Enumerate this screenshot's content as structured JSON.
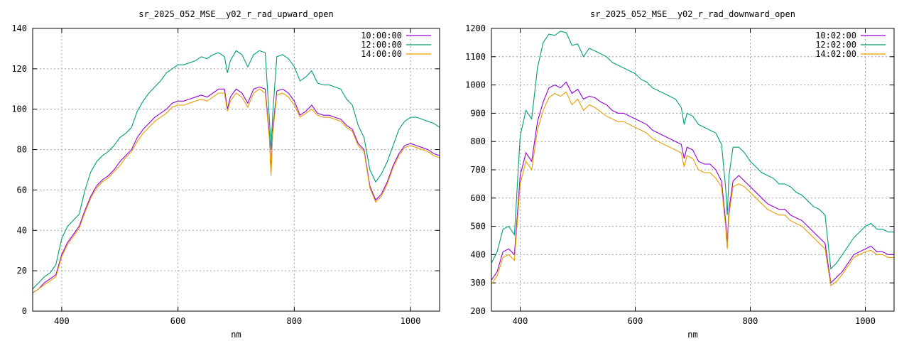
{
  "chart_data": [
    {
      "type": "line",
      "title": "sr_2025_052_MSE__y02_r_rad_upward_open",
      "xlabel": "nm",
      "ylabel": "",
      "xlim": [
        350,
        1050
      ],
      "ylim": [
        0,
        140
      ],
      "xticks": [
        400,
        600,
        800,
        1000
      ],
      "yticks": [
        0,
        20,
        40,
        60,
        80,
        100,
        120,
        140
      ],
      "grid": true,
      "legend_position": "top-right",
      "x": [
        350,
        360,
        370,
        380,
        390,
        400,
        410,
        420,
        430,
        440,
        450,
        460,
        470,
        480,
        490,
        500,
        510,
        520,
        530,
        540,
        550,
        560,
        570,
        580,
        590,
        600,
        610,
        620,
        630,
        640,
        650,
        660,
        670,
        680,
        685,
        690,
        700,
        710,
        720,
        730,
        740,
        750,
        757,
        760,
        763,
        770,
        780,
        790,
        800,
        810,
        820,
        830,
        840,
        850,
        860,
        870,
        880,
        890,
        900,
        910,
        920,
        930,
        940,
        950,
        960,
        970,
        980,
        990,
        1000,
        1010,
        1020,
        1030,
        1040,
        1050
      ],
      "series": [
        {
          "name": "10:00:00",
          "color": "#9400d3",
          "values": [
            9,
            11,
            14,
            16,
            18,
            28,
            34,
            38,
            42,
            50,
            57,
            62,
            65,
            67,
            70,
            74,
            77,
            80,
            86,
            90,
            93,
            96,
            98,
            100,
            103,
            104,
            104,
            105,
            106,
            107,
            106,
            108,
            110,
            110,
            100,
            106,
            110,
            108,
            103,
            110,
            111,
            110,
            88,
            69,
            90,
            109,
            110,
            108,
            104,
            97,
            99,
            102,
            98,
            97,
            97,
            96,
            95,
            92,
            90,
            83,
            80,
            62,
            55,
            58,
            64,
            72,
            78,
            82,
            83,
            82,
            81,
            80,
            78,
            77
          ],
          "labels": {
            "name": "10:00:00"
          }
        },
        {
          "name": "12:00:00",
          "color": "#009e73",
          "values": [
            11,
            14,
            17,
            19,
            23,
            36,
            42,
            45,
            48,
            60,
            69,
            74,
            77,
            79,
            82,
            86,
            88,
            91,
            99,
            104,
            108,
            111,
            114,
            118,
            120,
            122,
            122,
            123,
            124,
            126,
            125,
            127,
            128,
            126,
            118,
            124,
            129,
            127,
            121,
            127,
            129,
            128,
            96,
            80,
            98,
            126,
            127,
            125,
            121,
            114,
            116,
            119,
            113,
            112,
            112,
            111,
            110,
            105,
            102,
            92,
            86,
            70,
            64,
            68,
            74,
            82,
            90,
            94,
            96,
            96,
            95,
            94,
            93,
            91
          ],
          "labels": {
            "name": "12:00:00"
          }
        },
        {
          "name": "14:00:00",
          "color": "#e69f00",
          "values": [
            9,
            11,
            13,
            15,
            17,
            27,
            33,
            37,
            41,
            49,
            56,
            61,
            64,
            66,
            69,
            72,
            76,
            79,
            84,
            88,
            91,
            94,
            96,
            98,
            101,
            102,
            102,
            103,
            104,
            105,
            104,
            106,
            108,
            108,
            99,
            104,
            108,
            106,
            101,
            108,
            110,
            108,
            86,
            67,
            88,
            107,
            108,
            106,
            102,
            96,
            98,
            100,
            97,
            96,
            96,
            95,
            94,
            91,
            89,
            82,
            79,
            61,
            54,
            57,
            63,
            71,
            77,
            81,
            82,
            81,
            80,
            79,
            77,
            76
          ],
          "labels": {
            "name": "14:00:00"
          }
        }
      ]
    },
    {
      "type": "line",
      "title": "sr_2025_052_MSE__y02_r_rad_downward_open",
      "xlabel": "nm",
      "ylabel": "",
      "xlim": [
        350,
        1050
      ],
      "ylim": [
        200,
        1200
      ],
      "xticks": [
        400,
        600,
        800,
        1000
      ],
      "yticks": [
        200,
        300,
        400,
        500,
        600,
        700,
        800,
        900,
        1000,
        1100,
        1200
      ],
      "grid": true,
      "legend_position": "top-right",
      "x": [
        350,
        360,
        370,
        380,
        390,
        400,
        410,
        420,
        430,
        440,
        450,
        460,
        470,
        480,
        490,
        500,
        510,
        520,
        530,
        540,
        550,
        560,
        570,
        580,
        590,
        600,
        610,
        620,
        630,
        640,
        650,
        660,
        670,
        680,
        685,
        690,
        700,
        710,
        720,
        730,
        740,
        750,
        757,
        760,
        763,
        770,
        780,
        790,
        800,
        810,
        820,
        830,
        840,
        850,
        860,
        870,
        880,
        890,
        900,
        910,
        920,
        930,
        940,
        950,
        960,
        970,
        980,
        990,
        1000,
        1010,
        1020,
        1030,
        1040,
        1050
      ],
      "series": [
        {
          "name": "10:02:00",
          "color": "#9400d3",
          "values": [
            310,
            340,
            410,
            420,
            400,
            680,
            760,
            730,
            870,
            940,
            990,
            1000,
            990,
            1010,
            970,
            985,
            950,
            960,
            955,
            940,
            930,
            910,
            900,
            900,
            890,
            880,
            870,
            860,
            840,
            830,
            820,
            810,
            800,
            790,
            740,
            780,
            770,
            730,
            720,
            720,
            700,
            660,
            520,
            440,
            560,
            660,
            680,
            660,
            640,
            620,
            600,
            580,
            570,
            560,
            560,
            540,
            530,
            520,
            500,
            480,
            460,
            440,
            300,
            320,
            340,
            370,
            400,
            410,
            420,
            430,
            410,
            410,
            400,
            400
          ],
          "labels": {
            "name": "10:02:00"
          }
        },
        {
          "name": "12:02:00",
          "color": "#009e73",
          "values": [
            370,
            410,
            490,
            500,
            470,
            820,
            910,
            880,
            1060,
            1150,
            1180,
            1175,
            1190,
            1185,
            1140,
            1145,
            1100,
            1130,
            1120,
            1110,
            1100,
            1080,
            1070,
            1060,
            1050,
            1040,
            1020,
            1010,
            990,
            980,
            970,
            960,
            950,
            920,
            860,
            900,
            890,
            860,
            850,
            840,
            830,
            790,
            640,
            540,
            680,
            780,
            780,
            760,
            730,
            710,
            690,
            680,
            670,
            650,
            650,
            640,
            620,
            610,
            590,
            570,
            560,
            540,
            350,
            370,
            400,
            430,
            460,
            480,
            500,
            510,
            490,
            490,
            480,
            480
          ],
          "labels": {
            "name": "12:02:00"
          }
        },
        {
          "name": "14:02:00",
          "color": "#e69f00",
          "values": [
            295,
            325,
            390,
            400,
            380,
            650,
            730,
            700,
            840,
            910,
            955,
            970,
            960,
            975,
            930,
            950,
            910,
            930,
            920,
            905,
            890,
            880,
            870,
            870,
            860,
            850,
            840,
            830,
            810,
            800,
            790,
            780,
            770,
            760,
            710,
            750,
            740,
            700,
            690,
            690,
            670,
            640,
            500,
            420,
            540,
            640,
            650,
            640,
            620,
            600,
            580,
            560,
            550,
            540,
            540,
            520,
            510,
            500,
            480,
            460,
            440,
            420,
            290,
            305,
            330,
            360,
            390,
            400,
            410,
            415,
            400,
            400,
            390,
            390
          ],
          "labels": {
            "name": "14:02:00"
          }
        }
      ]
    }
  ]
}
